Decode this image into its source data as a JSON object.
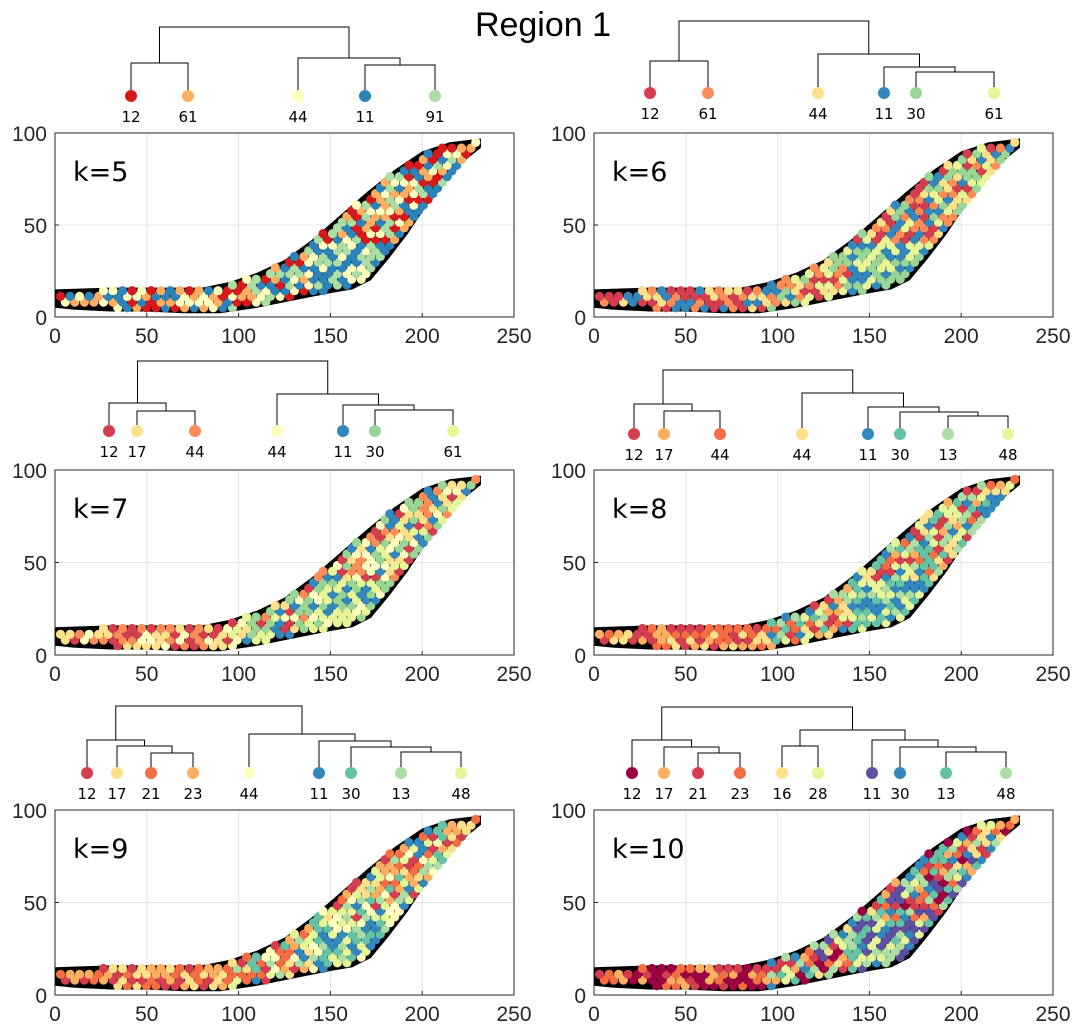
{
  "figure": {
    "title": "Region 1"
  },
  "axes": {
    "xticks": [
      "0",
      "50",
      "100",
      "150",
      "200",
      "250"
    ],
    "yticks": [
      "0",
      "50",
      "100"
    ]
  },
  "chart_data": [
    {
      "type": "scatter",
      "panel_label": "k=5",
      "xlim": [
        0,
        250
      ],
      "ylim": [
        0,
        100
      ],
      "grid": true,
      "dendrogram_leaves": [
        {
          "label": "12",
          "color": "#d7191c"
        },
        {
          "label": "61",
          "color": "#fdae61"
        },
        {
          "label": "44",
          "color": "#ffffbf"
        },
        {
          "label": "11",
          "color": "#2b83ba"
        },
        {
          "label": "91",
          "color": "#abdda4"
        }
      ],
      "dendrogram_tree": [
        [
          0,
          1
        ],
        [
          [
            2,
            [
              3,
              4
            ]
          ]
        ]
      ],
      "spots_summary": "hexagonal grid of spots on black tissue mask"
    },
    {
      "type": "scatter",
      "panel_label": "k=6",
      "xlim": [
        0,
        250
      ],
      "ylim": [
        0,
        100
      ],
      "grid": true,
      "dendrogram_leaves": [
        {
          "label": "12",
          "color": "#d53e4f"
        },
        {
          "label": "61",
          "color": "#fc8d59"
        },
        {
          "label": "44",
          "color": "#fee08b"
        },
        {
          "label": "11",
          "color": "#3288bd"
        },
        {
          "label": "30",
          "color": "#99d594"
        },
        {
          "label": "61",
          "color": "#e6f598"
        }
      ],
      "spots_summary": "hexagonal grid of spots on black tissue mask"
    },
    {
      "type": "scatter",
      "panel_label": "k=7",
      "xlim": [
        0,
        250
      ],
      "ylim": [
        0,
        100
      ],
      "grid": true,
      "dendrogram_leaves": [
        {
          "label": "12",
          "color": "#d53e4f"
        },
        {
          "label": "17",
          "color": "#fee08b"
        },
        {
          "label": "44",
          "color": "#fc8d59"
        },
        {
          "label": "44",
          "color": "#ffffbf"
        },
        {
          "label": "11",
          "color": "#3288bd"
        },
        {
          "label": "30",
          "color": "#99d594"
        },
        {
          "label": "61",
          "color": "#e6f598"
        }
      ],
      "spots_summary": "hexagonal grid of spots on black tissue mask"
    },
    {
      "type": "scatter",
      "panel_label": "k=8",
      "xlim": [
        0,
        250
      ],
      "ylim": [
        0,
        100
      ],
      "grid": true,
      "dendrogram_leaves": [
        {
          "label": "12",
          "color": "#d53e4f"
        },
        {
          "label": "17",
          "color": "#fdae61"
        },
        {
          "label": "44",
          "color": "#f46d43"
        },
        {
          "label": "44",
          "color": "#fee08b"
        },
        {
          "label": "11",
          "color": "#3288bd"
        },
        {
          "label": "30",
          "color": "#66c2a5"
        },
        {
          "label": "13",
          "color": "#abdda4"
        },
        {
          "label": "48",
          "color": "#e6f598"
        }
      ],
      "spots_summary": "hexagonal grid of spots on black tissue mask"
    },
    {
      "type": "scatter",
      "panel_label": "k=9",
      "xlim": [
        0,
        250
      ],
      "ylim": [
        0,
        100
      ],
      "grid": true,
      "dendrogram_leaves": [
        {
          "label": "12",
          "color": "#d53e4f"
        },
        {
          "label": "17",
          "color": "#fee08b"
        },
        {
          "label": "21",
          "color": "#f46d43"
        },
        {
          "label": "23",
          "color": "#fdae61"
        },
        {
          "label": "44",
          "color": "#ffffbf"
        },
        {
          "label": "11",
          "color": "#3288bd"
        },
        {
          "label": "30",
          "color": "#66c2a5"
        },
        {
          "label": "13",
          "color": "#abdda4"
        },
        {
          "label": "48",
          "color": "#e6f598"
        }
      ],
      "spots_summary": "hexagonal grid of spots on black tissue mask"
    },
    {
      "type": "scatter",
      "panel_label": "k=10",
      "xlim": [
        0,
        250
      ],
      "ylim": [
        0,
        100
      ],
      "grid": true,
      "dendrogram_leaves": [
        {
          "label": "12",
          "color": "#9e0142"
        },
        {
          "label": "17",
          "color": "#fdae61"
        },
        {
          "label": "21",
          "color": "#d53e4f"
        },
        {
          "label": "23",
          "color": "#f46d43"
        },
        {
          "label": "16",
          "color": "#fee08b"
        },
        {
          "label": "28",
          "color": "#e6f598"
        },
        {
          "label": "11",
          "color": "#5e4fa2"
        },
        {
          "label": "30",
          "color": "#3288bd"
        },
        {
          "label": "13",
          "color": "#66c2a5"
        },
        {
          "label": "48",
          "color": "#abdda4"
        }
      ],
      "spots_summary": "hexagonal grid of spots on black tissue mask"
    }
  ]
}
